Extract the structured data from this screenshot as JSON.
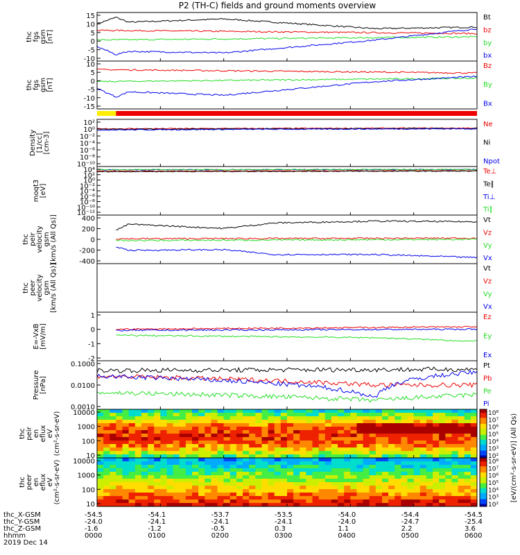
{
  "title": "P2 (TH-C) fields and ground moments overview",
  "colors": {
    "black": "#000000",
    "red": "#ee0000",
    "green": "#22dd22",
    "blue": "#0000ee",
    "yellow": "#ffee00",
    "bar_red": "#ee0000"
  },
  "time_axis": {
    "ticks": [
      "0000",
      "0100",
      "0200",
      "0300",
      "0400",
      "0500",
      "0600"
    ],
    "date": "2019 Dec 14"
  },
  "orbit_labels": [
    {
      "name": "thc_X-GSM",
      "values": [
        "-54.5",
        "-54.1",
        "-53.7",
        "-53.5",
        "-54.0",
        "-54.4",
        "-54.5"
      ]
    },
    {
      "name": "thc_Y-GSM",
      "values": [
        "-24.0",
        "-24.1",
        "-24.1",
        "-24.1",
        "-24.0",
        "-24.7",
        "-25.4"
      ]
    },
    {
      "name": "thc_Z-GSM",
      "values": [
        "-1.6",
        "-1.2",
        "-0.5",
        "0.3",
        "1.1",
        "2.2",
        "3.6"
      ]
    },
    {
      "name": "hhmm",
      "values": [
        "0000",
        "0100",
        "0200",
        "0300",
        "0400",
        "0500",
        "0600"
      ]
    }
  ],
  "mode_bar": {
    "segments": [
      {
        "color": "yellow",
        "start": 0,
        "end": 0.05
      },
      {
        "color": "bar_red",
        "start": 0.05,
        "end": 1.0
      }
    ]
  },
  "colorbar": {
    "unit": "[eV/(cm²-s-sr-eV)]",
    "suffix": "(All Qs)",
    "top_ticks": [
      "10⁸",
      "10⁷",
      "10⁶",
      "10⁵",
      "10⁴",
      "10³",
      "10²"
    ],
    "bottom_ticks": [
      "10⁸",
      "10⁷",
      "10⁶",
      "10⁵",
      "10⁴",
      "10³",
      "10²"
    ]
  },
  "chart_data": [
    {
      "type": "line",
      "ylabel": [
        "thc",
        "fgs",
        "gsm",
        "[nT]"
      ],
      "ylim": [
        -15,
        15
      ],
      "yticks": [
        "15",
        "10",
        "5",
        "0",
        "-5",
        "-10"
      ],
      "series": [
        {
          "name": "Bt",
          "color": "black",
          "x": [
            0,
            0.3,
            0.5,
            2,
            4.4,
            6
          ],
          "y": [
            8,
            12,
            9,
            11,
            5,
            6
          ]
        },
        {
          "name": "bz",
          "color": "red",
          "x": [
            0,
            6
          ],
          "y": [
            4,
            2
          ]
        },
        {
          "name": "by",
          "color": "green",
          "x": [
            0,
            6
          ],
          "y": [
            -2,
            0
          ]
        },
        {
          "name": "bx",
          "color": "blue",
          "x": [
            0,
            0.3,
            0.5,
            2,
            4.4,
            6
          ],
          "y": [
            -6,
            -11,
            -9,
            -10,
            -2,
            5
          ]
        }
      ]
    },
    {
      "type": "line",
      "ylabel": [
        "thc",
        "fgs",
        "gsm",
        "[nT]"
      ],
      "ylim": [
        -18,
        10
      ],
      "yticks": [
        "10",
        "5",
        "0",
        "-5",
        "-10",
        "-15"
      ],
      "series": [
        {
          "name": "Bz",
          "color": "red",
          "x": [
            0,
            6
          ],
          "y": [
            5,
            3
          ]
        },
        {
          "name": "By",
          "color": "green",
          "x": [
            0,
            6
          ],
          "y": [
            -2,
            0
          ]
        },
        {
          "name": "Bx",
          "color": "blue",
          "x": [
            0,
            0.3,
            0.5,
            2,
            4.4,
            6
          ],
          "y": [
            -6,
            -11,
            -8,
            -10,
            -2,
            1
          ]
        }
      ]
    },
    {
      "type": "line",
      "ylabel": [
        "Density",
        "[1/cc]",
        "[cm-3]"
      ],
      "ylim": [
        1e-10,
        100.0
      ],
      "yticks": [
        "10²",
        "10⁰",
        "10⁻²",
        "10⁻⁴",
        "10⁻⁶",
        "10⁻⁸",
        "10⁻¹⁰"
      ],
      "series": [
        {
          "name": "Ne",
          "color": "red",
          "x": [
            0,
            6
          ],
          "y": [
            0.4,
            0.6
          ]
        },
        {
          "name": "Ni",
          "color": "black",
          "x": [
            0,
            6
          ],
          "y": [
            0.3,
            0.5
          ]
        },
        {
          "name": "Npot",
          "color": "blue",
          "x": [
            0,
            6
          ],
          "y": [
            0.2,
            0.4
          ]
        }
      ]
    },
    {
      "type": "line",
      "ylabel": [
        "moqt3",
        "[eV]"
      ],
      "ylim": [
        1e-12,
        10000.0
      ],
      "yticks": [
        "10⁴",
        "10²",
        "10⁰",
        "10⁻²",
        "10⁻⁴",
        "10⁻⁶",
        "10⁻⁸",
        "10⁻¹⁰",
        "10⁻¹²"
      ],
      "series": [
        {
          "name": "Te⊥",
          "color": "red",
          "x": [
            0,
            6
          ],
          "y": [
            300,
            400
          ]
        },
        {
          "name": "Te∥",
          "color": "black",
          "x": [
            0,
            6
          ],
          "y": [
            200,
            300
          ]
        },
        {
          "name": "Ti⊥",
          "color": "blue",
          "x": [
            0,
            6
          ],
          "y": [
            800,
            1000
          ]
        },
        {
          "name": "Ti∥",
          "color": "green",
          "x": [
            0,
            6
          ],
          "y": [
            900,
            1100
          ]
        }
      ]
    },
    {
      "type": "line",
      "ylabel": [
        "thc",
        "peir",
        "velocity",
        "gsm",
        "[km/s (All Qs)]"
      ],
      "ylim": [
        -400,
        400
      ],
      "yticks": [
        "400",
        "200",
        "0",
        "-200",
        "-400"
      ],
      "series": [
        {
          "name": "Vt",
          "color": "black",
          "x": [
            0.3,
            0.5,
            2,
            2.8,
            4.4,
            6
          ],
          "y": [
            150,
            250,
            180,
            270,
            300,
            290
          ]
        },
        {
          "name": "Vz",
          "color": "red",
          "x": [
            0.3,
            6
          ],
          "y": [
            10,
            20
          ]
        },
        {
          "name": "Vy",
          "color": "green",
          "x": [
            0.3,
            6
          ],
          "y": [
            -20,
            0
          ]
        },
        {
          "name": "Vx",
          "color": "blue",
          "x": [
            0.3,
            0.5,
            2,
            2.8,
            4.4,
            6
          ],
          "y": [
            -120,
            -180,
            -170,
            -250,
            -250,
            -300
          ]
        }
      ]
    },
    {
      "type": "line",
      "ylabel": [
        "thc",
        "peer",
        "velocity",
        "gsm",
        "[km/s (All Qs)]"
      ],
      "ylim": [
        -400,
        400
      ],
      "yticks": [],
      "series": [
        {
          "name": "Vt",
          "color": "black",
          "x": [],
          "y": []
        },
        {
          "name": "Vz",
          "color": "red",
          "x": [],
          "y": []
        },
        {
          "name": "Vy",
          "color": "green",
          "x": [],
          "y": []
        },
        {
          "name": "Vx",
          "color": "blue",
          "x": [],
          "y": []
        }
      ]
    },
    {
      "type": "line",
      "ylabel": [
        "E=-VxB",
        "[mV/m]"
      ],
      "ylim": [
        -2.5,
        1.5
      ],
      "yticks": [
        "1",
        "0",
        "-1",
        "-2"
      ],
      "series": [
        {
          "name": "Ez",
          "color": "red",
          "x": [
            0.3,
            6
          ],
          "y": [
            0.1,
            0.3
          ]
        },
        {
          "name": "Ey",
          "color": "green",
          "x": [
            0.3,
            4.4,
            6
          ],
          "y": [
            -0.4,
            -0.6,
            -0.9
          ]
        },
        {
          "name": "Ex",
          "color": "blue",
          "x": [
            0.3,
            6
          ],
          "y": [
            0,
            0.1
          ]
        }
      ]
    },
    {
      "type": "line",
      "ylabel": [
        "Pressure",
        "[nPa]"
      ],
      "ylim": [
        0.0005,
        0.2
      ],
      "yscale": "log",
      "yticks": [
        "0.1000",
        "0.0100",
        "0.0010"
      ],
      "series": [
        {
          "name": "Pt",
          "color": "black",
          "x": [
            0,
            6
          ],
          "y": [
            0.06,
            0.07
          ]
        },
        {
          "name": "Pb",
          "color": "red",
          "x": [
            0,
            4.4,
            6
          ],
          "y": [
            0.03,
            0.01,
            0.01
          ]
        },
        {
          "name": "Pe",
          "color": "green",
          "x": [
            0,
            4.4,
            6
          ],
          "y": [
            0.004,
            0.0015,
            0.003
          ]
        },
        {
          "name": "Pi",
          "color": "blue",
          "x": [
            0,
            4.4,
            6
          ],
          "y": [
            0.03,
            0.002,
            0.05
          ]
        }
      ]
    },
    {
      "type": "heatmap",
      "ylabel": [
        "thc",
        "peir",
        "en",
        "eflux",
        "eV",
        "(cm²-s-sr-eV)"
      ],
      "ylim": [
        5,
        30000
      ],
      "yscale": "log",
      "yticks": [
        "10000",
        "1000",
        "100",
        "10"
      ]
    },
    {
      "type": "heatmap",
      "ylabel": [
        "thc",
        "peer",
        "en",
        "eflux",
        "eV",
        "(cm²-s-sr-eV)"
      ],
      "ylim": [
        5,
        30000
      ],
      "yscale": "log",
      "yticks": [
        "10000",
        "1000",
        "100",
        "10"
      ]
    }
  ]
}
